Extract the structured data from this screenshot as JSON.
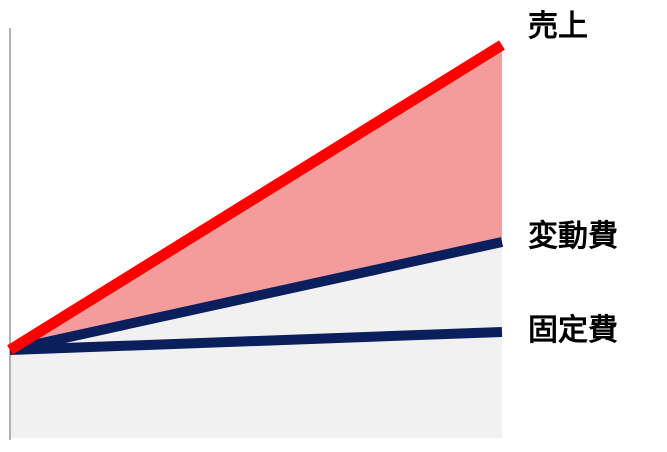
{
  "labels": {
    "revenue": "売上",
    "variable_cost": "変動費",
    "fixed_cost": "固定費"
  },
  "colors": {
    "revenue_line": "#ff0000",
    "profit_fill": "#f49b9b",
    "cost_lines": "#0a1f5c",
    "cost_region_fill": "#f1f1f1",
    "axis": "#9a9a9a"
  }
}
